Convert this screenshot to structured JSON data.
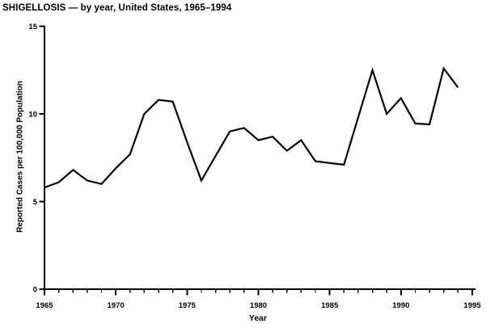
{
  "title": "SHIGELLOSIS — by year, United States, 1965–1994",
  "colors": {
    "line": "#000000",
    "axis": "#000000",
    "background": "#ffffff",
    "text": "#000000"
  },
  "chart_data": {
    "type": "line",
    "title": "SHIGELLOSIS — by year, United States, 1965–1994",
    "xlabel": "Year",
    "ylabel": "Reported Cases per 100,000 Population",
    "x": [
      1965,
      1966,
      1967,
      1968,
      1969,
      1970,
      1971,
      1972,
      1973,
      1974,
      1975,
      1976,
      1977,
      1978,
      1979,
      1980,
      1981,
      1982,
      1983,
      1984,
      1985,
      1986,
      1987,
      1988,
      1989,
      1990,
      1991,
      1992,
      1993,
      1994
    ],
    "values": [
      5.8,
      6.1,
      6.8,
      6.2,
      6.0,
      6.9,
      7.7,
      10.0,
      10.8,
      10.7,
      8.4,
      6.2,
      7.6,
      9.0,
      9.2,
      8.5,
      8.7,
      7.9,
      8.5,
      7.3,
      7.2,
      7.1,
      9.8,
      12.5,
      10.0,
      10.9,
      9.45,
      9.4,
      12.6,
      11.5
    ],
    "xlim": [
      1965,
      1995
    ],
    "ylim": [
      0,
      15
    ],
    "y_ticks": [
      0,
      5,
      10,
      15
    ],
    "x_major_ticks": [
      1965,
      1970,
      1975,
      1980,
      1985,
      1990,
      1995
    ],
    "x_minor_tick_interval": 1,
    "grid": false,
    "legend": false,
    "line_color": "#000000"
  }
}
